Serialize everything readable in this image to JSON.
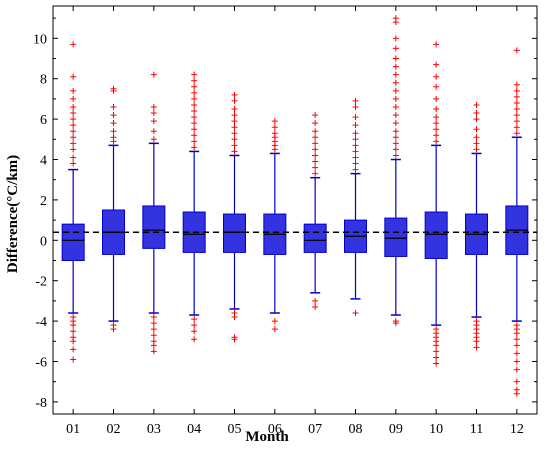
{
  "chart_data": {
    "type": "box",
    "xlabel": "Month",
    "ylabel": "Difference(°C/km)",
    "categories": [
      "01",
      "02",
      "03",
      "04",
      "05",
      "06",
      "07",
      "08",
      "09",
      "10",
      "11",
      "12"
    ],
    "ylim": [
      -8.6,
      11.6
    ],
    "yticks": [
      -8,
      -6,
      -4,
      -2,
      0,
      2,
      4,
      6,
      8,
      10
    ],
    "reference_line": {
      "y": 0.4,
      "style": "dashed",
      "color": "#000000"
    },
    "colors": {
      "box_fill": "#3333e0",
      "box_edge": "#0000cc",
      "whisker": "#0000cc",
      "median": "#000000",
      "outlier": "#ff0000"
    },
    "boxes": [
      {
        "category": "01",
        "whisker_low": -3.6,
        "q1": -1.0,
        "median": 0.0,
        "q3": 0.8,
        "whisker_high": 3.5,
        "outliers_high": [
          3.8,
          4.1,
          4.5,
          4.8,
          5.1,
          5.4,
          5.7,
          6.0,
          6.3,
          6.6,
          7.0,
          7.4,
          8.1,
          9.7
        ],
        "outliers_low": [
          -3.8,
          -4.0,
          -4.2,
          -4.5,
          -4.8,
          -5.0,
          -5.4,
          -5.9
        ]
      },
      {
        "category": "02",
        "whisker_low": -4.0,
        "q1": -0.7,
        "median": 0.4,
        "q3": 1.5,
        "whisker_high": 4.7,
        "outliers_high": [
          4.9,
          5.1,
          5.4,
          5.8,
          6.2,
          6.6,
          7.4,
          7.5
        ],
        "outliers_low": [
          -4.2,
          -4.4
        ]
      },
      {
        "category": "03",
        "whisker_low": -3.6,
        "q1": -0.4,
        "median": 0.5,
        "q3": 1.7,
        "whisker_high": 4.8,
        "outliers_high": [
          5.0,
          5.4,
          5.9,
          6.3,
          6.6,
          8.2
        ],
        "outliers_low": [
          -3.8,
          -4.1,
          -4.4,
          -4.7,
          -5.0,
          -5.2,
          -5.5
        ]
      },
      {
        "category": "04",
        "whisker_low": -3.7,
        "q1": -0.6,
        "median": 0.3,
        "q3": 1.4,
        "whisker_high": 4.4,
        "outliers_high": [
          4.6,
          4.9,
          5.2,
          5.5,
          5.8,
          6.1,
          6.4,
          6.7,
          7.0,
          7.3,
          7.6,
          7.9,
          8.2
        ],
        "outliers_low": [
          -3.9,
          -4.2,
          -4.5,
          -4.9
        ]
      },
      {
        "category": "05",
        "whisker_low": -3.4,
        "q1": -0.6,
        "median": 0.4,
        "q3": 1.3,
        "whisker_high": 4.2,
        "outliers_high": [
          4.4,
          4.7,
          5.0,
          5.3,
          5.6,
          5.9,
          6.2,
          6.5,
          6.9,
          7.2
        ],
        "outliers_low": [
          -3.6,
          -3.8,
          -4.8,
          -4.9
        ]
      },
      {
        "category": "06",
        "whisker_low": -3.6,
        "q1": -0.7,
        "median": 0.3,
        "q3": 1.3,
        "whisker_high": 4.3,
        "outliers_high": [
          4.5,
          4.7,
          4.9,
          5.1,
          5.3,
          5.6,
          5.9
        ],
        "outliers_low": [
          -4.0,
          -4.4
        ]
      },
      {
        "category": "07",
        "whisker_low": -2.6,
        "q1": -0.6,
        "median": 0.0,
        "q3": 0.8,
        "whisker_high": 3.1,
        "outliers_high": [
          3.3,
          3.6,
          3.9,
          4.2,
          4.5,
          4.8,
          5.1,
          5.4,
          5.8,
          6.2
        ],
        "outliers_low": [
          -3.0,
          -3.3
        ]
      },
      {
        "category": "08",
        "whisker_low": -2.9,
        "q1": -0.6,
        "median": 0.2,
        "q3": 1.0,
        "whisker_high": 3.3,
        "outliers_high": [
          3.5,
          3.8,
          4.1,
          4.4,
          4.7,
          5.0,
          5.3,
          5.7,
          6.1,
          6.6,
          6.9
        ],
        "outliers_low": [
          -3.6
        ]
      },
      {
        "category": "09",
        "whisker_low": -3.7,
        "q1": -0.8,
        "median": 0.1,
        "q3": 1.1,
        "whisker_high": 4.0,
        "outliers_high": [
          4.2,
          4.5,
          4.8,
          5.1,
          5.4,
          5.8,
          6.2,
          6.6,
          7.0,
          7.4,
          7.8,
          8.2,
          8.6,
          9.0,
          9.5,
          10.0,
          10.8,
          11.0
        ],
        "outliers_low": [
          -4.0,
          -4.1
        ]
      },
      {
        "category": "10",
        "whisker_low": -4.2,
        "q1": -0.9,
        "median": 0.3,
        "q3": 1.4,
        "whisker_high": 4.7,
        "outliers_high": [
          4.9,
          5.2,
          5.5,
          5.8,
          6.1,
          6.5,
          7.0,
          7.6,
          8.1,
          8.7,
          9.7
        ],
        "outliers_low": [
          -4.4,
          -4.6,
          -4.8,
          -5.0,
          -5.2,
          -5.5,
          -5.8,
          -6.1
        ]
      },
      {
        "category": "11",
        "whisker_low": -3.8,
        "q1": -0.7,
        "median": 0.3,
        "q3": 1.3,
        "whisker_high": 4.3,
        "outliers_high": [
          4.5,
          4.8,
          5.1,
          5.5,
          6.0,
          6.3,
          6.7
        ],
        "outliers_low": [
          -4.0,
          -4.2,
          -4.4,
          -4.6,
          -4.8,
          -5.0,
          -5.3
        ]
      },
      {
        "category": "12",
        "whisker_low": -4.0,
        "q1": -0.7,
        "median": 0.5,
        "q3": 1.7,
        "whisker_high": 5.1,
        "outliers_high": [
          5.3,
          5.6,
          5.9,
          6.2,
          6.5,
          6.8,
          7.1,
          7.4,
          7.7,
          9.4
        ],
        "outliers_low": [
          -4.2,
          -4.4,
          -4.6,
          -4.9,
          -5.2,
          -5.6,
          -6.0,
          -6.4,
          -7.0,
          -7.4,
          -7.6
        ]
      }
    ]
  }
}
